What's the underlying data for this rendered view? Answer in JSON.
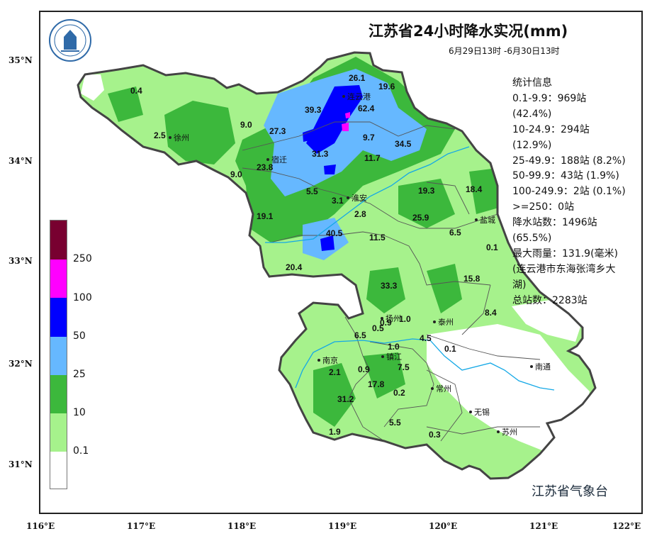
{
  "title": "江苏省24小时降水实况(mm)",
  "subtitle": "6月29日13时 -6月30日13时",
  "agency": "江苏省气象台",
  "stats": {
    "heading": "统计信息",
    "lines": [
      "0.1-9.9：969站",
      "(42.4%)",
      "10-24.9：294站",
      "(12.9%)",
      "25-49.9：188站 (8.2%)",
      "50-99.9：43站 (1.9%)",
      "100-249.9：2站 (0.1%)",
      ">=250：0站",
      "降水站数：1496站",
      "(65.5%)",
      "最大雨量：131.9(毫米)",
      "(连云港市东海张湾乡大",
      "湖)",
      "总站数：2283站"
    ]
  },
  "axes": {
    "x_ticks": [
      "116°E",
      "117°E",
      "118°E",
      "119°E",
      "120°E",
      "121°E",
      "122°E"
    ],
    "y_ticks": [
      "35°N",
      "34°N",
      "33°N",
      "32°N",
      "31°N"
    ]
  },
  "legend": {
    "labels": [
      "250",
      "100",
      "50",
      "25",
      "10",
      "0.1"
    ],
    "colors": [
      "#780030",
      "#ff00ff",
      "#0000ff",
      "#66b8ff",
      "#3cb83c",
      "#a6f28c",
      "#ffffff"
    ]
  },
  "colors": {
    "light_green": "#a6f28c",
    "green": "#3cb83c",
    "light_blue": "#66b8ff",
    "blue": "#0000ff",
    "magenta": "#ff00ff",
    "river": "#14a8e6",
    "border": "#444444"
  },
  "cities": [
    "连云港",
    "徐州",
    "宿迁",
    "淮安",
    "盐城",
    "扬州",
    "泰州",
    "南京",
    "镇江",
    "南通",
    "常州",
    "无锡",
    "苏州"
  ],
  "values": [
    "0.4",
    "2.5",
    "9.0",
    "9.0",
    "27.3",
    "39.3",
    "62.4",
    "26.1",
    "19.6",
    "9.7",
    "34.5",
    "31.3",
    "11.7",
    "23.8",
    "5.5",
    "3.1",
    "2.8",
    "19.1",
    "40.5",
    "11.5",
    "25.9",
    "19.3",
    "18.4",
    "6.5",
    "0.1",
    "20.4",
    "33.3",
    "15.8",
    "8.4",
    "0.9",
    "1.0",
    "0.5",
    "6.5",
    "4.5",
    "0.1",
    "1.0",
    "2.1",
    "0.9",
    "7.5",
    "17.8",
    "0.2",
    "31.2",
    "5.5",
    "0.3",
    "1.9"
  ]
}
